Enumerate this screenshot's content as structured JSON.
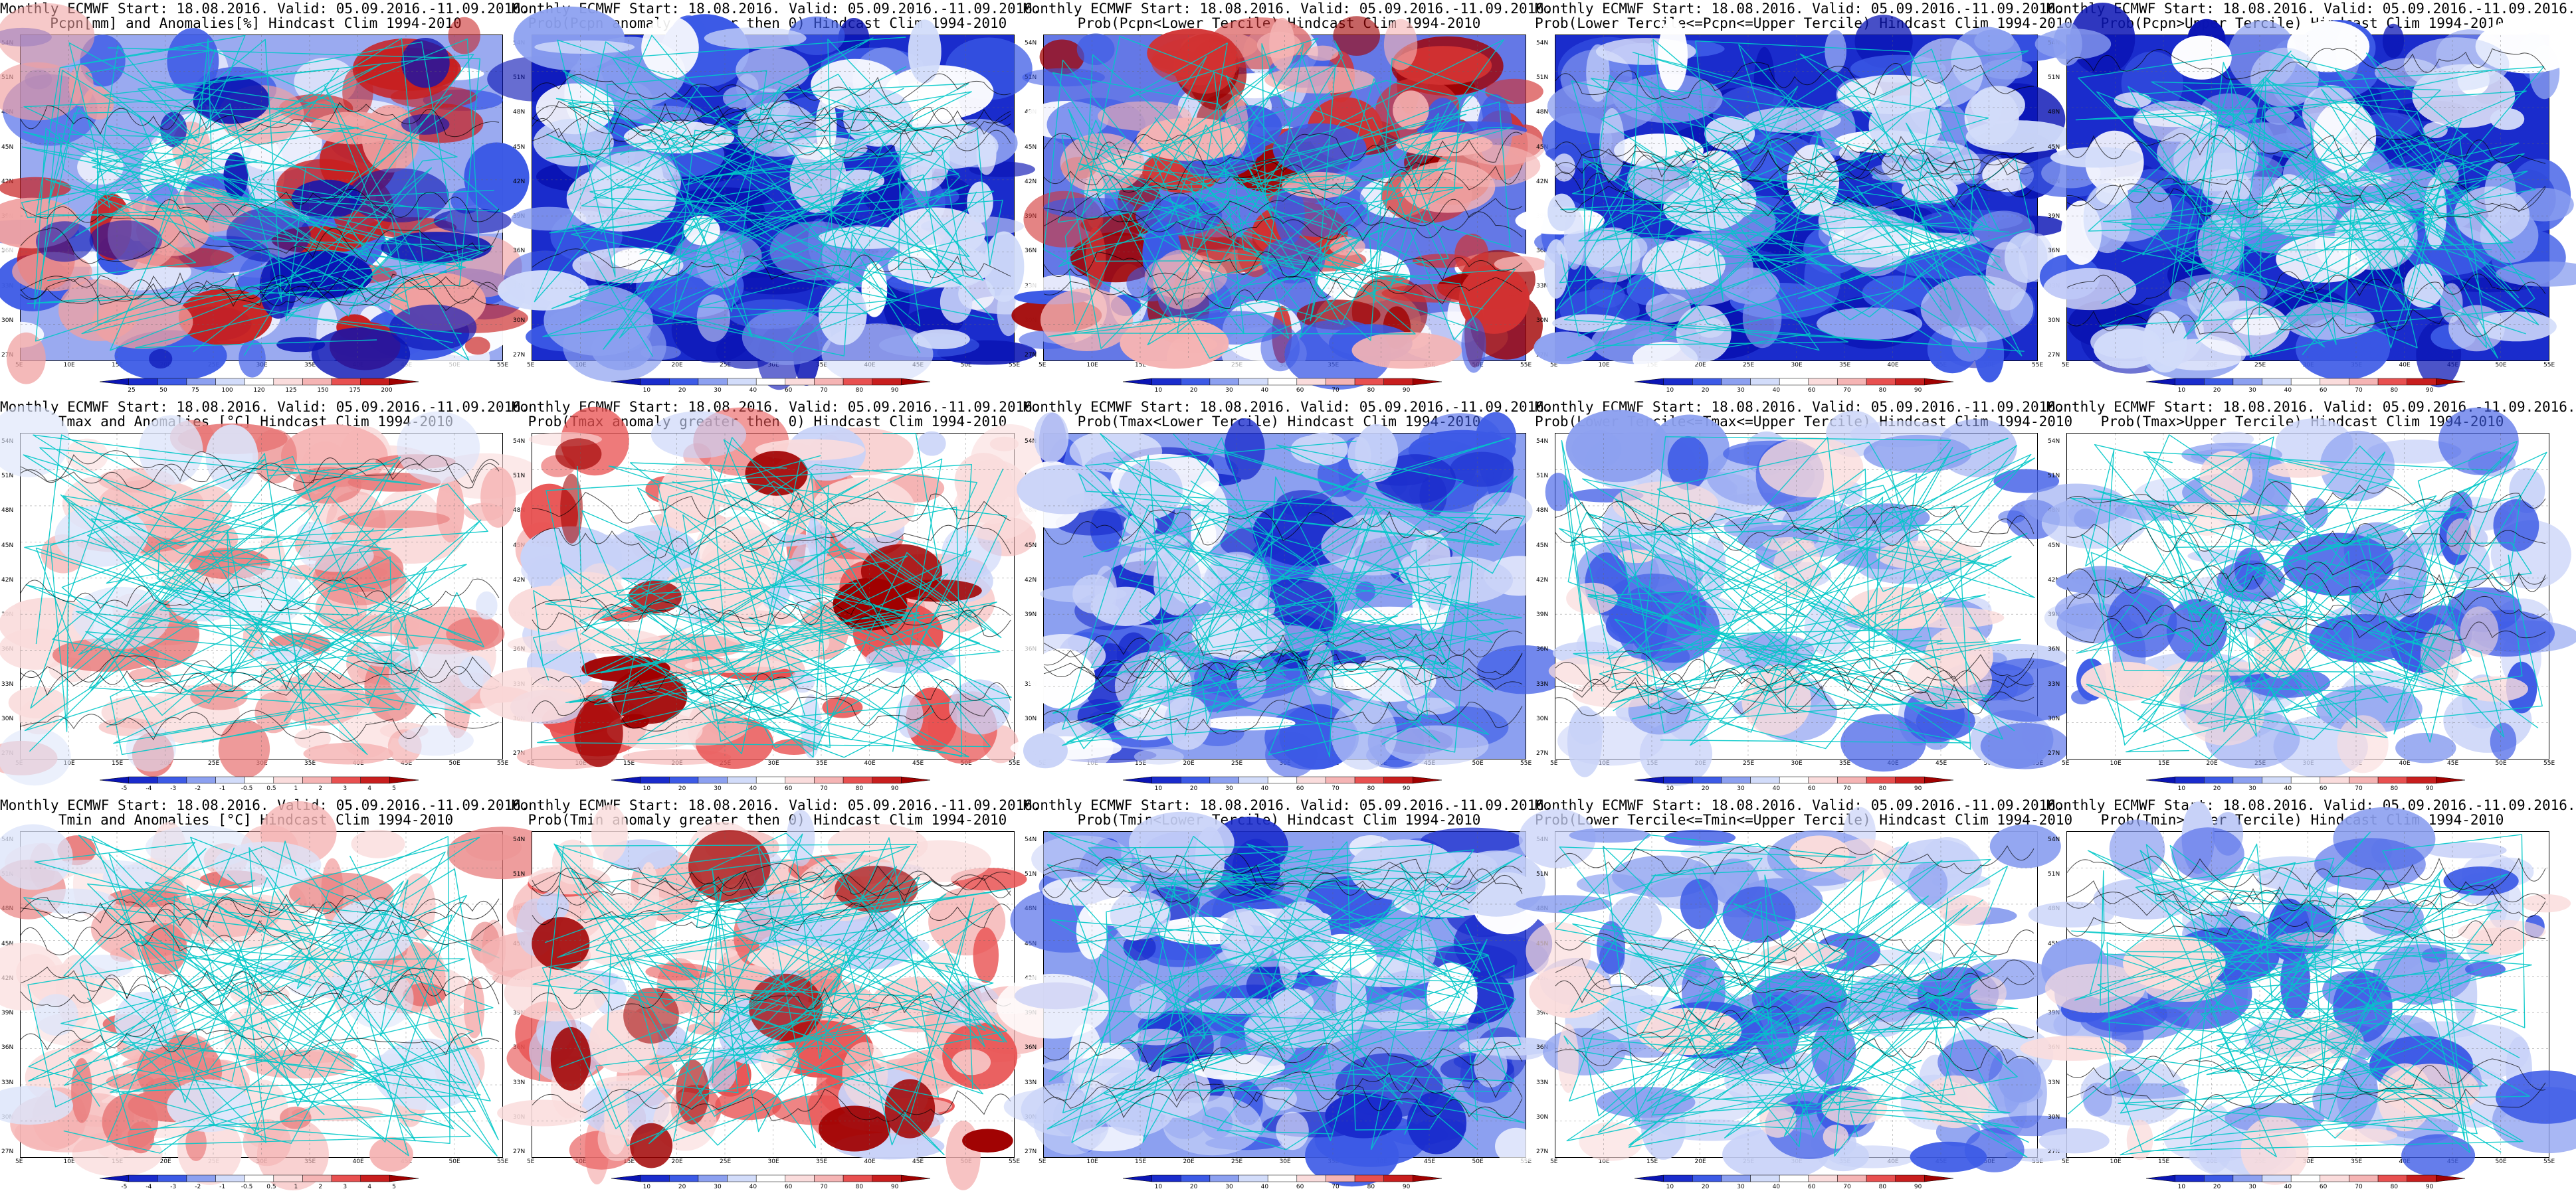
{
  "figure": {
    "longitude_ticks": [
      "5E",
      "10E",
      "15E",
      "20E",
      "25E",
      "30E",
      "35E",
      "40E",
      "45E",
      "50E",
      "55E"
    ],
    "latitude_ticks": [
      "54N",
      "51N",
      "48N",
      "45N",
      "42N",
      "39N",
      "36N",
      "33N",
      "30N",
      "27N"
    ],
    "colors": {
      "map_border": "#000000",
      "coastline": "#00c8c8",
      "contour": "#000000",
      "deep_blue": "#0a14b4",
      "dark_red": "#a00000"
    },
    "panels": [
      {
        "id": "pcpn-anom",
        "title_line1": "Monthly ECMWF Start: 18.08.2016. Valid: 05.09.2016.-11.09.2016.",
        "title_line2": "Pcpn[mm] and Anomalies[%]",
        "title_line2_suffix": "Hindcast Clim 1994-2010",
        "colorbar_labels": [
          "25",
          "50",
          "75",
          "100",
          "120",
          "125",
          "150",
          "175",
          "200"
        ],
        "scheme": "precip_anom"
      },
      {
        "id": "pcpn-prob-pos",
        "title_line1": "Monthly ECMWF Start: 18.08.2016. Valid: 05.09.2016.-11.09.2016.",
        "title_line2": "Prob(Pcpn anomaly greater then 0)",
        "title_line2_suffix": "Hindcast Clim 1994-2010",
        "colorbar_labels": [
          "10",
          "20",
          "30",
          "40",
          "60",
          "70",
          "80",
          "90"
        ],
        "scheme": "blue_dominant"
      },
      {
        "id": "pcpn-lower",
        "title_line1": "Monthly ECMWF Start: 18.08.2016. Valid: 05.09.2016.-11.09.2016.",
        "title_line2": "Prob(Pcpn<Lower Tercile)",
        "title_line2_suffix": "Hindcast Clim 1994-2010",
        "colorbar_labels": [
          "10",
          "20",
          "30",
          "40",
          "60",
          "70",
          "80",
          "90"
        ],
        "scheme": "red_south"
      },
      {
        "id": "pcpn-middle",
        "title_line1": "Monthly ECMWF Start: 18.08.2016. Valid: 05.09.2016.-11.09.2016.",
        "title_line2": "Prob(Lower Tercile<=Pcpn<=Upper Tercile)",
        "title_line2_suffix": "Hindcast Clim 1994-2010",
        "colorbar_labels": [
          "10",
          "20",
          "30",
          "40",
          "60",
          "70",
          "80",
          "90"
        ],
        "scheme": "blue_dominant"
      },
      {
        "id": "pcpn-upper",
        "title_line1": "Monthly ECMWF Start: 18.08.2016. Valid: 05.09.2016.-11.09.2016.",
        "title_line2": "Prob(Pcpn>Upper Tercile)",
        "title_line2_suffix": "Hindcast Clim 1994-2010",
        "colorbar_labels": [
          "10",
          "20",
          "30",
          "40",
          "60",
          "70",
          "80",
          "90"
        ],
        "scheme": "blue_dominant"
      },
      {
        "id": "tmax-anom",
        "title_line1": "Monthly ECMWF Start: 18.08.2016. Valid: 05.09.2016.-11.09.2016.",
        "title_line2": "Tmax and Anomalies [°C]",
        "title_line2_suffix": "Hindcast Clim 1994-2010",
        "colorbar_labels": [
          "-5",
          "-4",
          "-3",
          "-2",
          "-1",
          "-0.5",
          "0.5",
          "1",
          "2",
          "3",
          "4",
          "5"
        ],
        "scheme": "light_red"
      },
      {
        "id": "tmax-prob-pos",
        "title_line1": "Monthly ECMWF Start: 18.08.2016. Valid: 05.09.2016.-11.09.2016.",
        "title_line2": "Prob(Tmax anomaly greater then 0)",
        "title_line2_suffix": "Hindcast Clim 1994-2010",
        "colorbar_labels": [
          "10",
          "20",
          "30",
          "40",
          "60",
          "70",
          "80",
          "90"
        ],
        "scheme": "mixed_red"
      },
      {
        "id": "tmax-lower",
        "title_line1": "Monthly ECMWF Start: 18.08.2016. Valid: 05.09.2016.-11.09.2016.",
        "title_line2": "Prob(Tmax<Lower Tercile)",
        "title_line2_suffix": "Hindcast Clim 1994-2010",
        "colorbar_labels": [
          "10",
          "20",
          "30",
          "40",
          "60",
          "70",
          "80",
          "90"
        ],
        "scheme": "mid_blue"
      },
      {
        "id": "tmax-middle",
        "title_line1": "Monthly ECMWF Start: 18.08.2016. Valid: 05.09.2016.-11.09.2016.",
        "title_line2": "Prob(Lower Tercile<=Tmax<=Upper Tercile)",
        "title_line2_suffix": "Hindcast Clim 1994-2010",
        "colorbar_labels": [
          "10",
          "20",
          "30",
          "40",
          "60",
          "70",
          "80",
          "90"
        ],
        "scheme": "light_blue"
      },
      {
        "id": "tmax-upper",
        "title_line1": "Monthly ECMWF Start: 18.08.2016. Valid: 05.09.2016.-11.09.2016.",
        "title_line2": "Prob(Tmax>Upper Tercile)",
        "title_line2_suffix": "Hindcast Clim 1994-2010",
        "colorbar_labels": [
          "10",
          "20",
          "30",
          "40",
          "60",
          "70",
          "80",
          "90"
        ],
        "scheme": "light_blue"
      },
      {
        "id": "tmin-anom",
        "title_line1": "Monthly ECMWF Start: 18.08.2016. Valid: 05.09.2016.-11.09.2016.",
        "title_line2": "Tmin and Anomalies [°C]",
        "title_line2_suffix": "Hindcast Clim 1994-2010",
        "colorbar_labels": [
          "-5",
          "-4",
          "-3",
          "-2",
          "-1",
          "-0.5",
          "0.5",
          "1",
          "2",
          "3",
          "4",
          "5"
        ],
        "scheme": "light_red"
      },
      {
        "id": "tmin-prob-pos",
        "title_line1": "Monthly ECMWF Start: 18.08.2016. Valid: 05.09.2016.-11.09.2016.",
        "title_line2": "Prob(Tmin anomaly greater then 0)",
        "title_line2_suffix": "Hindcast Clim 1994-2010",
        "colorbar_labels": [
          "10",
          "20",
          "30",
          "40",
          "60",
          "70",
          "80",
          "90"
        ],
        "scheme": "mixed_red"
      },
      {
        "id": "tmin-lower",
        "title_line1": "Monthly ECMWF Start: 18.08.2016. Valid: 05.09.2016.-11.09.2016.",
        "title_line2": "Prob(Tmin<Lower Tercile)",
        "title_line2_suffix": "Hindcast Clim 1994-2010",
        "colorbar_labels": [
          "10",
          "20",
          "30",
          "40",
          "60",
          "70",
          "80",
          "90"
        ],
        "scheme": "mid_blue"
      },
      {
        "id": "tmin-middle",
        "title_line1": "Monthly ECMWF Start: 18.08.2016. Valid: 05.09.2016.-11.09.2016.",
        "title_line2": "Prob(Lower Tercile<=Tmin<=Upper Tercile)",
        "title_line2_suffix": "Hindcast Clim 1994-2010",
        "colorbar_labels": [
          "10",
          "20",
          "30",
          "40",
          "60",
          "70",
          "80",
          "90"
        ],
        "scheme": "light_blue"
      },
      {
        "id": "tmin-upper",
        "title_line1": "Monthly ECMWF Start: 18.08.2016. Valid: 05.09.2016.-11.09.2016.",
        "title_line2": "Prob(Tmin>Upper Tercile)",
        "title_line2_suffix": "Hindcast Clim 1994-2010",
        "colorbar_labels": [
          "10",
          "20",
          "30",
          "40",
          "60",
          "70",
          "80",
          "90"
        ],
        "scheme": "light_blue"
      }
    ]
  }
}
